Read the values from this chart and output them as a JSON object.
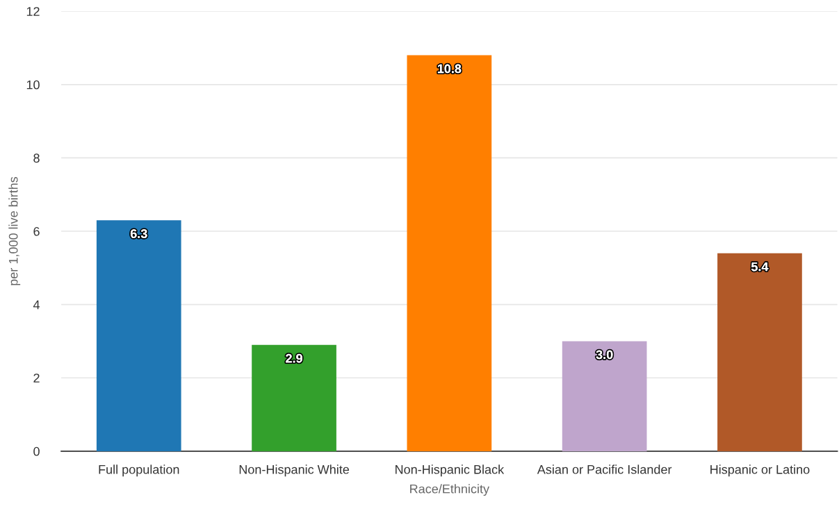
{
  "chart_data": {
    "type": "bar",
    "xlabel": "Race/Ethnicity",
    "ylabel": "per 1,000 live births",
    "categories": [
      "Full population",
      "Non-Hispanic White",
      "Non-Hispanic Black",
      "Asian or Pacific Islander",
      "Hispanic or Latino"
    ],
    "values": [
      6.3,
      2.9,
      10.8,
      3.0,
      5.4
    ],
    "value_labels": [
      "6.3",
      "2.9",
      "10.8",
      "3.0",
      "5.4"
    ],
    "colors": [
      "#1f77b4",
      "#33a02c",
      "#ff7f00",
      "#bfa5cc",
      "#b15928"
    ],
    "ylim": [
      0,
      12
    ],
    "yticks": [
      0,
      2,
      4,
      6,
      8,
      10,
      12
    ],
    "grid": "y",
    "legend": false
  }
}
